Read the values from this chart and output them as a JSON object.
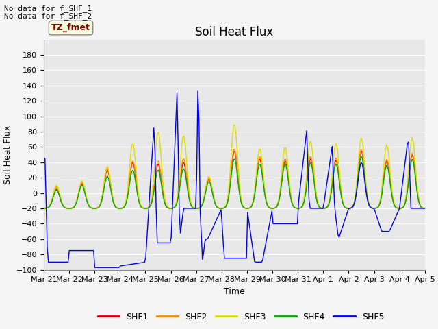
{
  "title": "Soil Heat Flux",
  "xlabel": "Time",
  "ylabel": "Soil Heat Flux",
  "ylim": [
    -100,
    200
  ],
  "yticks": [
    -100,
    -80,
    -60,
    -40,
    -20,
    0,
    20,
    40,
    60,
    80,
    100,
    120,
    140,
    160,
    180
  ],
  "annotation_text1": "No data for f_SHF_1",
  "annotation_text2": "No data for f_SHF_2",
  "box_label": "TZ_fmet",
  "legend_labels": [
    "SHF1",
    "SHF2",
    "SHF3",
    "SHF4",
    "SHF5"
  ],
  "colors": {
    "SHF1": "#dd0000",
    "SHF2": "#ff8800",
    "SHF3": "#dddd00",
    "SHF4": "#00aa00",
    "SHF5": "#0000ee"
  },
  "x_tick_labels": [
    "Mar 21",
    "Mar 22",
    "Mar 23",
    "Mar 24",
    "Mar 25",
    "Mar 26",
    "Mar 27",
    "Mar 28",
    "Mar 29",
    "Mar 30",
    "Mar 31",
    "Apr 1",
    "Apr 2",
    "Apr 3",
    "Apr 4",
    "Apr 5"
  ],
  "background_color": "#e8e8e8",
  "grid_color": "#ffffff",
  "title_fontsize": 12,
  "axis_label_fontsize": 9,
  "tick_fontsize": 8,
  "legend_fontsize": 9
}
